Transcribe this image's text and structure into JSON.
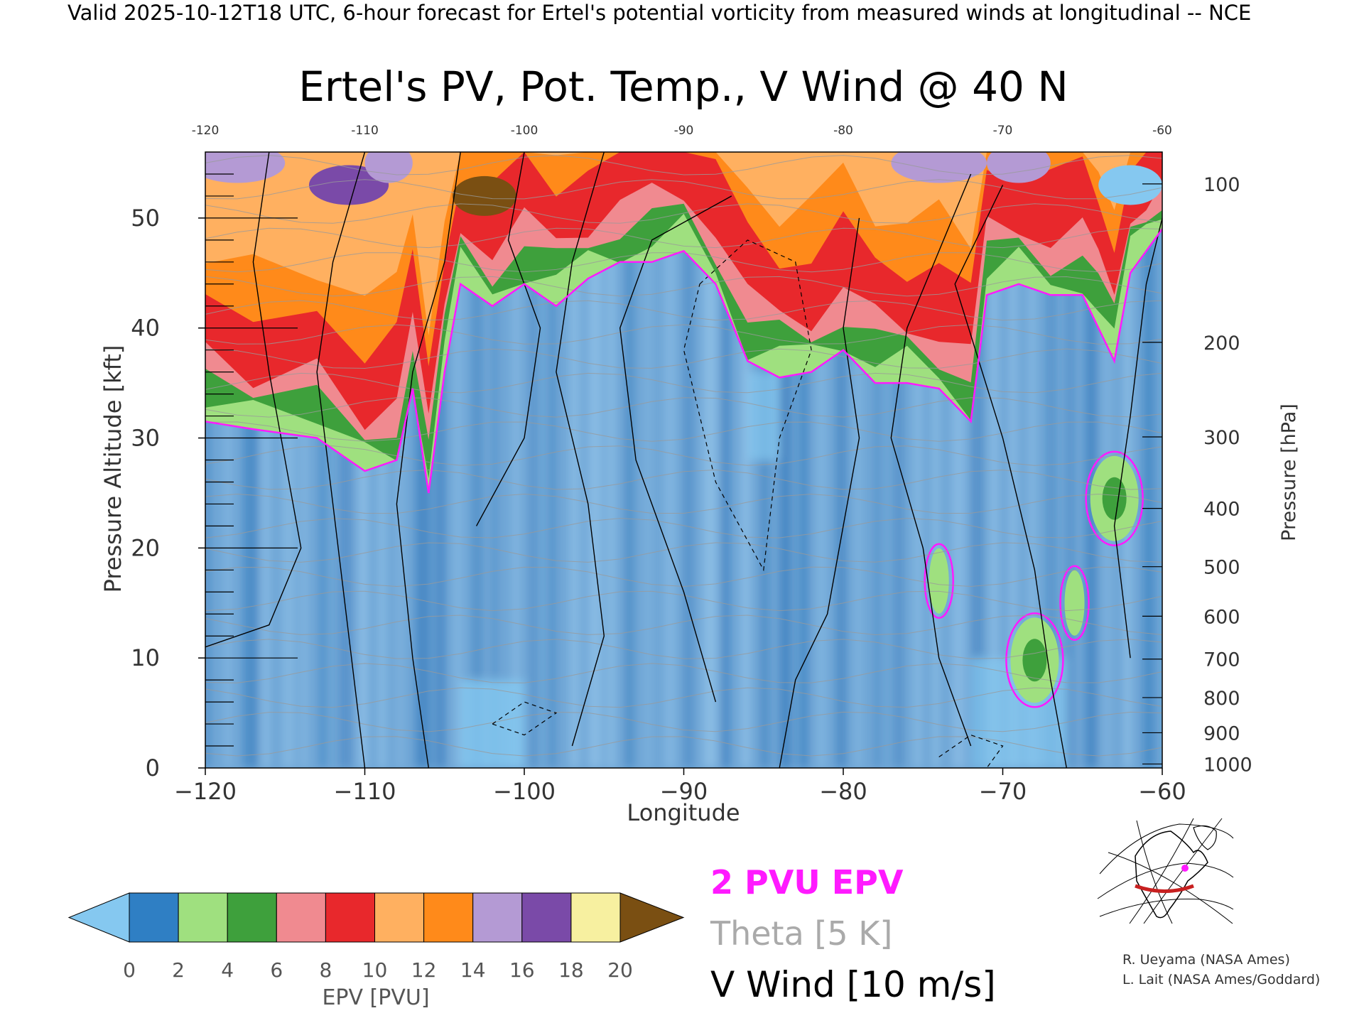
{
  "header": {
    "caption": "Valid 2025-10-12T18 UTC, 6-hour forecast for Ertel's potential vorticity from measured winds at longitudinal -- NCE"
  },
  "chart_data": {
    "type": "heatmap",
    "title": "Ertel's PV, Pot. Temp., V Wind @ 40 N",
    "xlabel": "Longitude",
    "ylabel": "Pressure Altitude [kft]",
    "y2label": "Pressure [hPa]",
    "xlim": [
      -120,
      -60
    ],
    "ylim": [
      0,
      56
    ],
    "x_ticks": [
      -120,
      -110,
      -100,
      -90,
      -80,
      -70,
      -60
    ],
    "x_tick_labels": [
      "−120",
      "−110",
      "−100",
      "−90",
      "−80",
      "−70",
      "−60"
    ],
    "top_tick_labels": [
      "-120",
      "-110",
      "-100",
      "-90",
      "-80",
      "-70",
      "-60"
    ],
    "y_ticks": [
      0,
      10,
      20,
      30,
      40,
      50
    ],
    "y2_ticks": [
      {
        "hPa": 100,
        "kft": 53.1
      },
      {
        "hPa": 200,
        "kft": 38.7
      },
      {
        "hPa": 300,
        "kft": 30.1
      },
      {
        "hPa": 400,
        "kft": 23.6
      },
      {
        "hPa": 500,
        "kft": 18.3
      },
      {
        "hPa": 600,
        "kft": 13.8
      },
      {
        "hPa": 700,
        "kft": 9.9
      },
      {
        "hPa": 800,
        "kft": 6.4
      },
      {
        "hPa": 900,
        "kft": 3.2
      },
      {
        "hPa": 1000,
        "kft": 0.36
      }
    ],
    "tropopause_2pvu_kft": [
      [
        -120,
        31.5
      ],
      [
        -117,
        30.8
      ],
      [
        -113,
        30
      ],
      [
        -110,
        27
      ],
      [
        -108,
        28
      ],
      [
        -107,
        34.5
      ],
      [
        -106,
        25
      ],
      [
        -105,
        36
      ],
      [
        -104,
        44
      ],
      [
        -102,
        42
      ],
      [
        -100,
        44
      ],
      [
        -98,
        42
      ],
      [
        -96,
        44.5
      ],
      [
        -94,
        46
      ],
      [
        -92,
        46
      ],
      [
        -90,
        47
      ],
      [
        -88,
        44
      ],
      [
        -86,
        37
      ],
      [
        -84,
        35.5
      ],
      [
        -82,
        36
      ],
      [
        -80,
        38
      ],
      [
        -78,
        35
      ],
      [
        -76,
        35
      ],
      [
        -74,
        34.5
      ],
      [
        -72,
        31.5
      ],
      [
        -71,
        43
      ],
      [
        -69,
        44
      ],
      [
        -67,
        43
      ],
      [
        -65,
        43
      ],
      [
        -64,
        40
      ],
      [
        -63,
        37
      ],
      [
        -62,
        45
      ],
      [
        -61,
        47
      ],
      [
        -60,
        49
      ]
    ],
    "pv_anomalies": [
      {
        "lon": -68,
        "kft": 9.8,
        "pvu": 4
      },
      {
        "lon": -65.5,
        "kft": 15,
        "pvu": 3
      },
      {
        "lon": -63,
        "kft": 24.5,
        "pvu": 4
      },
      {
        "lon": -74,
        "kft": 17,
        "pvu": 2.5
      }
    ],
    "theta_interval_K": 5,
    "wind_contour_interval_ms": 10,
    "colorbar": {
      "label": "EPV [PVU]",
      "ticks": [
        "0",
        "2",
        "4",
        "6",
        "8",
        "10",
        "12",
        "14",
        "16",
        "18",
        "20"
      ],
      "colors": [
        "#2f7fc4",
        "#9fe07f",
        "#3ea03c",
        "#f08a90",
        "#e8282c",
        "#ffb060",
        "#ff8a1a",
        "#b49ad4",
        "#7a4aa8",
        "#f7f0a0"
      ],
      "under_color": "#85c8f0",
      "over_color": "#7a4f12"
    },
    "legend": [
      {
        "label": "2 PVU EPV",
        "color": "#ff1aff"
      },
      {
        "label": "Theta [5 K]",
        "color": "#aaaaaa"
      },
      {
        "label": "V Wind [10 m/s]",
        "color": "#000000"
      }
    ]
  },
  "credits": {
    "line1": "R. Ueyama (NASA Ames)",
    "line2": "L. Lait (NASA Ames/Goddard)"
  }
}
